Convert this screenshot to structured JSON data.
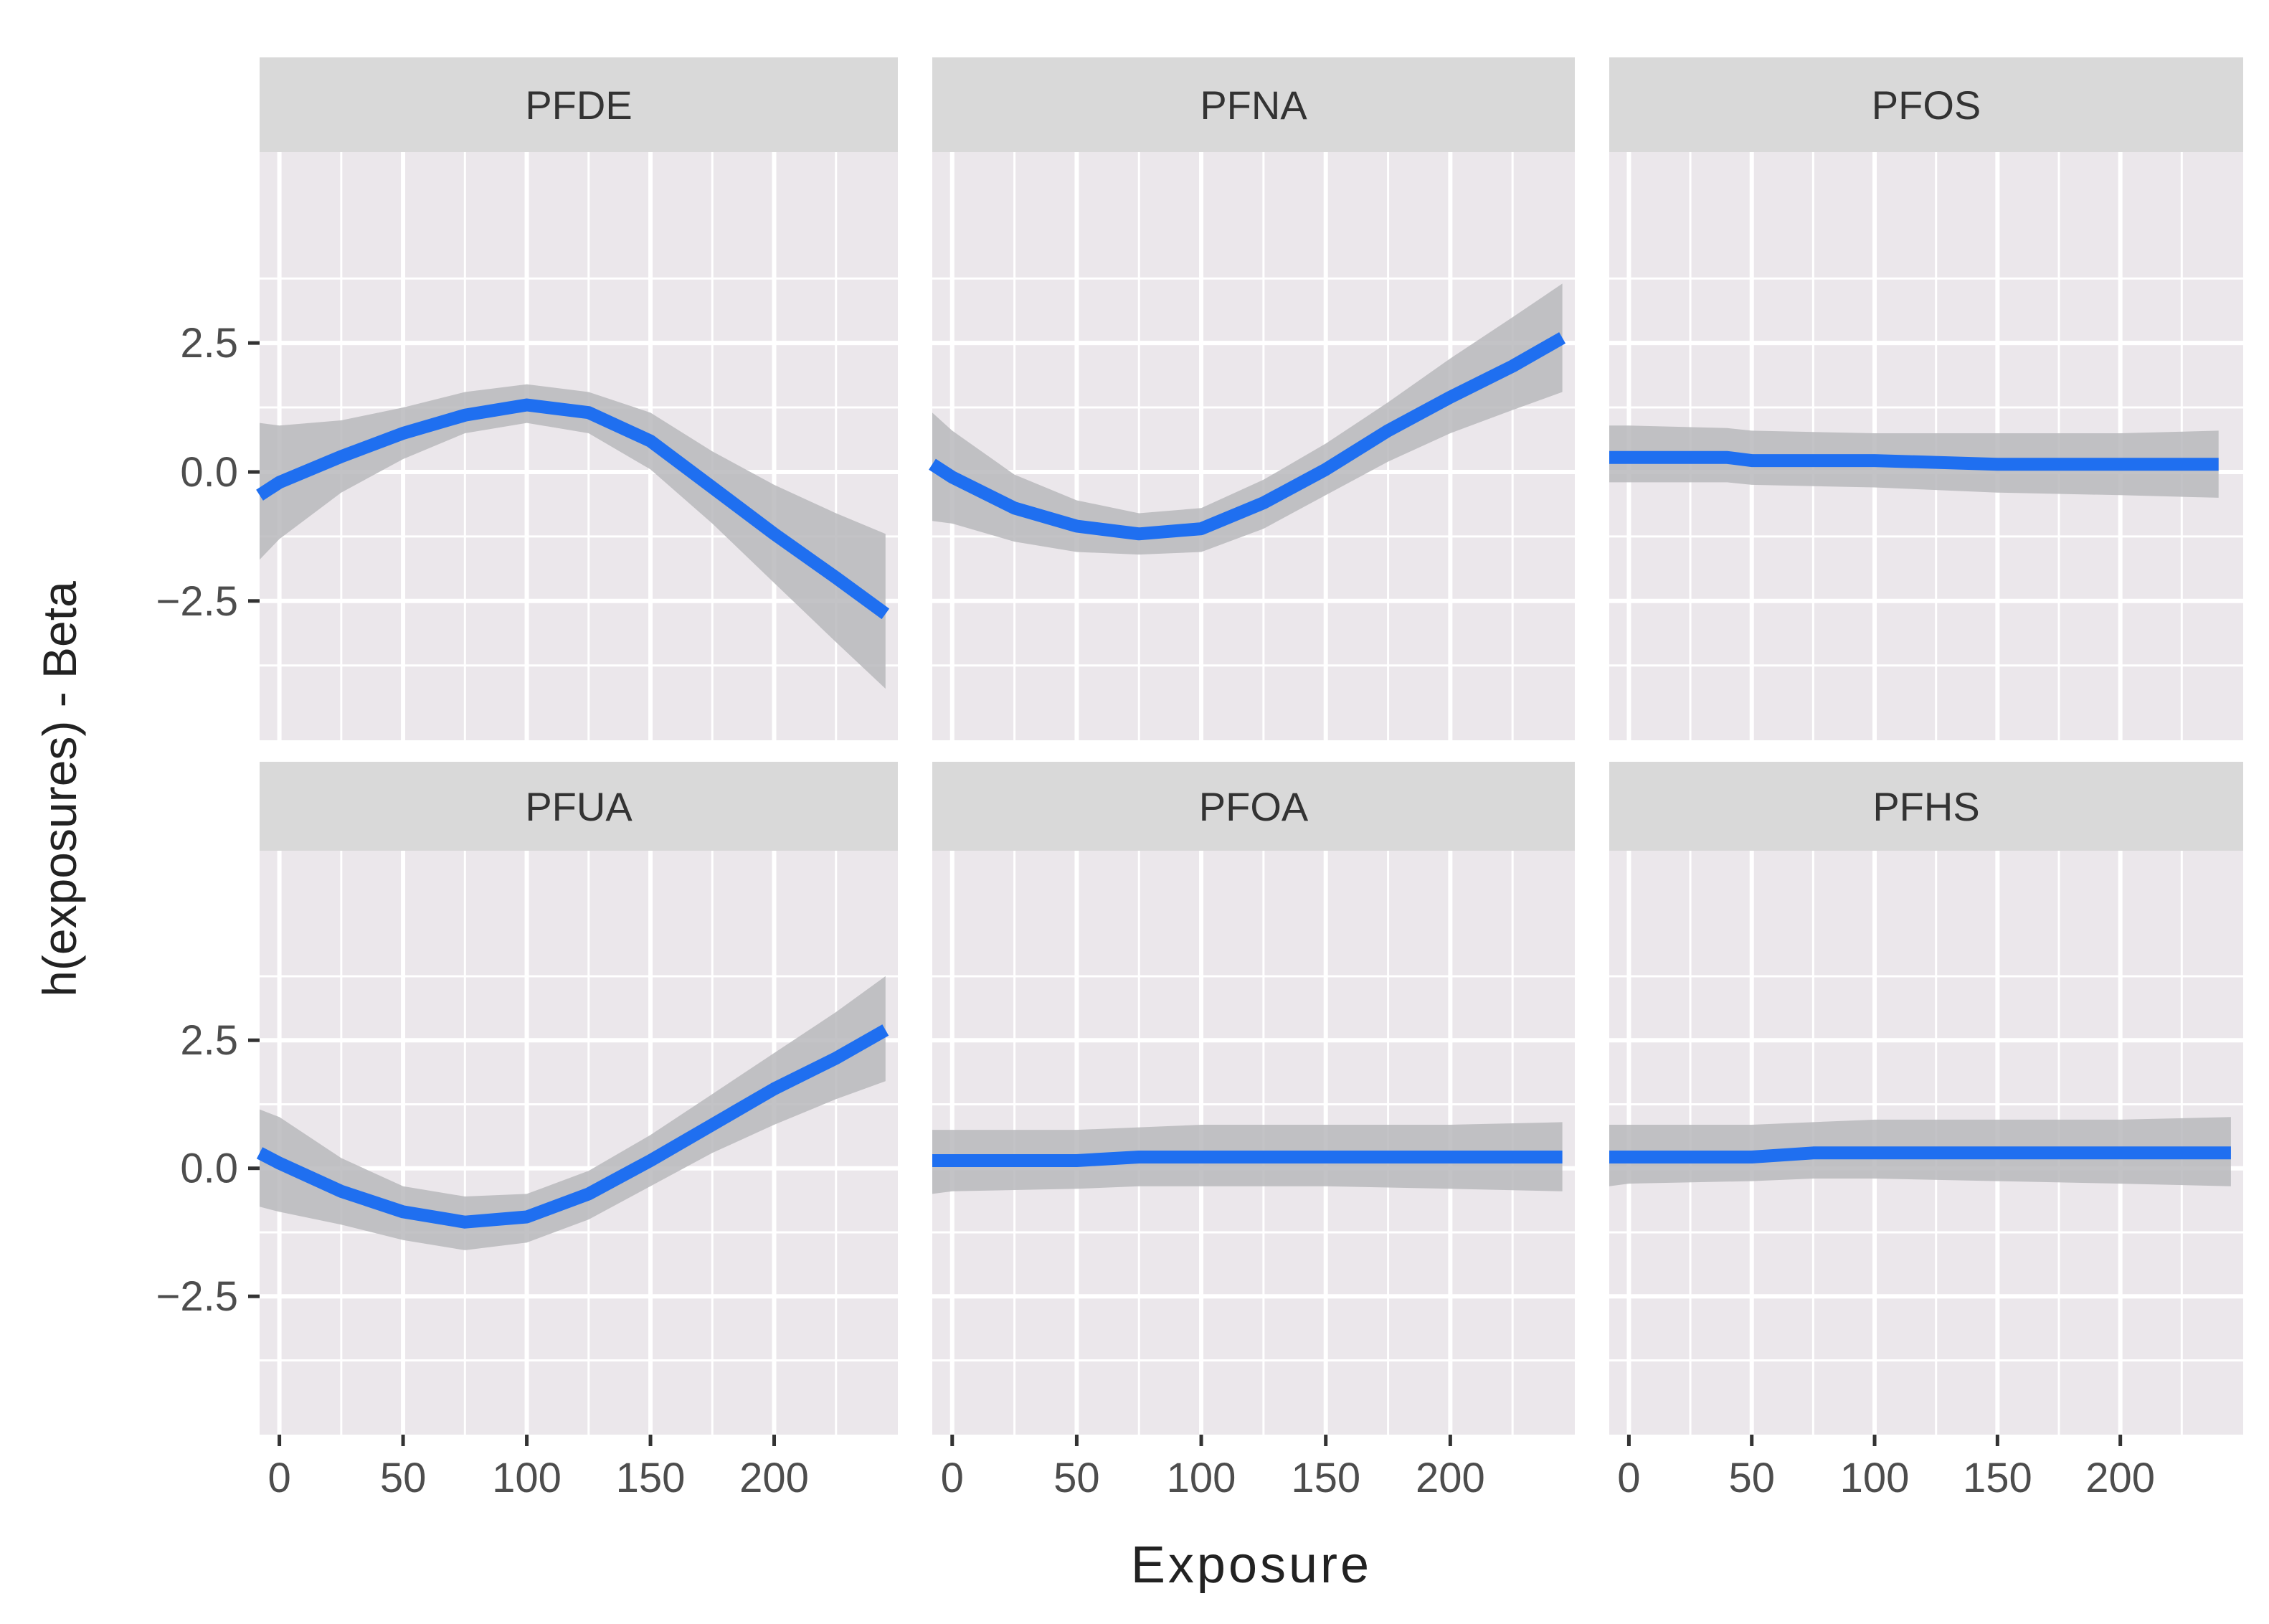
{
  "chart_data": {
    "type": "line",
    "facet_layout": "2 rows x 3 columns, shared axes",
    "xlabel": "Exposure",
    "ylabel": "h(exposures) - Beta",
    "xlim": [
      -8,
      250
    ],
    "ylim": [
      -5.2,
      6.2
    ],
    "x_ticks": [
      0,
      50,
      100,
      150,
      200
    ],
    "x_tick_labels": [
      "0",
      "50",
      "100",
      "150",
      "200"
    ],
    "y_ticks": [
      2.5,
      0.0,
      -2.5
    ],
    "y_tick_labels": [
      "2.5",
      "0.0",
      "−2.5"
    ],
    "grid": true,
    "line_color": "#1f6ff0",
    "band_color": "#b9b9bc",
    "panel_background": "#ebe7eb",
    "strip_background": "#d9d9d9",
    "panels": [
      {
        "title": "PFDE",
        "x": [
          -8,
          0,
          25,
          50,
          75,
          100,
          125,
          150,
          175,
          200,
          225,
          245
        ],
        "y": [
          -0.45,
          -0.2,
          0.3,
          0.75,
          1.1,
          1.3,
          1.15,
          0.6,
          -0.3,
          -1.2,
          -2.05,
          -2.75
        ],
        "lower": [
          -1.7,
          -1.3,
          -0.4,
          0.25,
          0.75,
          0.95,
          0.75,
          0.05,
          -1.0,
          -2.15,
          -3.3,
          -4.2
        ],
        "upper": [
          0.95,
          0.9,
          1.0,
          1.25,
          1.55,
          1.7,
          1.55,
          1.15,
          0.4,
          -0.25,
          -0.8,
          -1.2
        ]
      },
      {
        "title": "PFNA",
        "x": [
          -8,
          0,
          25,
          50,
          75,
          100,
          125,
          150,
          175,
          200,
          225,
          245
        ],
        "y": [
          0.15,
          -0.1,
          -0.7,
          -1.05,
          -1.2,
          -1.1,
          -0.6,
          0.05,
          0.8,
          1.45,
          2.05,
          2.6
        ],
        "lower": [
          -0.95,
          -1.0,
          -1.35,
          -1.55,
          -1.6,
          -1.55,
          -1.1,
          -0.45,
          0.2,
          0.75,
          1.2,
          1.55
        ],
        "upper": [
          1.15,
          0.8,
          -0.05,
          -0.55,
          -0.8,
          -0.7,
          -0.15,
          0.55,
          1.35,
          2.2,
          3.0,
          3.65
        ]
      },
      {
        "title": "PFOS",
        "x": [
          -8,
          0,
          40,
          50,
          100,
          150,
          200,
          240
        ],
        "y": [
          0.28,
          0.28,
          0.28,
          0.22,
          0.22,
          0.15,
          0.15,
          0.15
        ],
        "lower": [
          -0.2,
          -0.2,
          -0.2,
          -0.25,
          -0.3,
          -0.4,
          -0.45,
          -0.5
        ],
        "upper": [
          0.9,
          0.9,
          0.85,
          0.8,
          0.75,
          0.75,
          0.75,
          0.8
        ]
      },
      {
        "title": "PFUA",
        "x": [
          -8,
          0,
          25,
          50,
          75,
          100,
          125,
          150,
          175,
          200,
          225,
          245
        ],
        "y": [
          0.3,
          0.1,
          -0.45,
          -0.85,
          -1.05,
          -0.95,
          -0.5,
          0.15,
          0.85,
          1.55,
          2.15,
          2.7
        ],
        "lower": [
          -0.75,
          -0.85,
          -1.1,
          -1.4,
          -1.6,
          -1.45,
          -1.0,
          -0.35,
          0.3,
          0.85,
          1.35,
          1.7
        ],
        "upper": [
          1.15,
          1.0,
          0.2,
          -0.35,
          -0.55,
          -0.5,
          -0.05,
          0.65,
          1.45,
          2.25,
          3.05,
          3.75
        ]
      },
      {
        "title": "PFOA",
        "x": [
          -8,
          0,
          50,
          75,
          100,
          150,
          200,
          245
        ],
        "y": [
          0.15,
          0.15,
          0.15,
          0.22,
          0.22,
          0.22,
          0.22,
          0.22
        ],
        "lower": [
          -0.5,
          -0.45,
          -0.4,
          -0.35,
          -0.35,
          -0.35,
          -0.4,
          -0.45
        ],
        "upper": [
          0.75,
          0.75,
          0.75,
          0.8,
          0.85,
          0.85,
          0.85,
          0.9
        ]
      },
      {
        "title": "PFHS",
        "x": [
          -8,
          0,
          50,
          75,
          100,
          150,
          200,
          245
        ],
        "y": [
          0.22,
          0.22,
          0.22,
          0.3,
          0.3,
          0.3,
          0.3,
          0.3
        ],
        "lower": [
          -0.35,
          -0.3,
          -0.25,
          -0.2,
          -0.2,
          -0.25,
          -0.3,
          -0.35
        ],
        "upper": [
          0.85,
          0.85,
          0.85,
          0.9,
          0.95,
          0.95,
          0.95,
          1.0
        ]
      }
    ]
  }
}
